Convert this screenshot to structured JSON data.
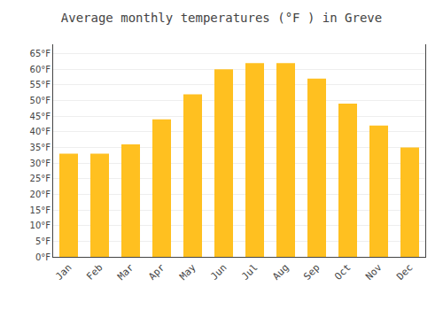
{
  "chart_data": {
    "type": "bar",
    "title": "Average monthly temperatures (°F ) in Greve",
    "categories": [
      "Jan",
      "Feb",
      "Mar",
      "Apr",
      "May",
      "Jun",
      "Jul",
      "Aug",
      "Sep",
      "Oct",
      "Nov",
      "Dec"
    ],
    "values": [
      33,
      33,
      36,
      44,
      52,
      60,
      62,
      62,
      57,
      49,
      42,
      35
    ],
    "color": "#FFC020",
    "ylim": [
      0,
      68
    ],
    "yticks": [
      {
        "value": 0,
        "label": "0°F"
      },
      {
        "value": 5,
        "label": "5°F"
      },
      {
        "value": 10,
        "label": "10°F"
      },
      {
        "value": 15,
        "label": "15°F"
      },
      {
        "value": 20,
        "label": "20°F"
      },
      {
        "value": 25,
        "label": "25°F"
      },
      {
        "value": 30,
        "label": "30°F"
      },
      {
        "value": 35,
        "label": "35°F"
      },
      {
        "value": 40,
        "label": "40°F"
      },
      {
        "value": 45,
        "label": "45°F"
      },
      {
        "value": 50,
        "label": "50°F"
      },
      {
        "value": 55,
        "label": "55°F"
      },
      {
        "value": 60,
        "label": "60°F"
      },
      {
        "value": 65,
        "label": "65°F"
      }
    ],
    "grid": true
  }
}
